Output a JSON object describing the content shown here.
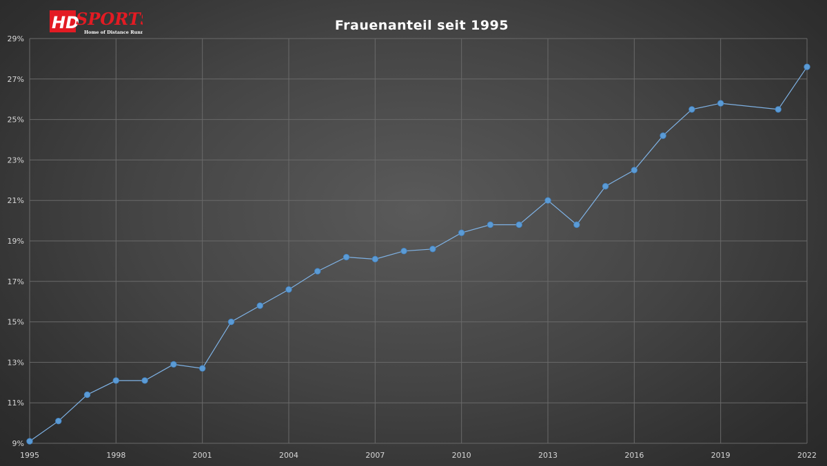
{
  "logo": {
    "mark": "HD",
    "word": "SPORTS",
    "tagline": "Home of Distance Runners"
  },
  "chart_data": {
    "type": "line",
    "title": "Frauenanteil seit 1995",
    "xlabel": "",
    "ylabel": "",
    "xlim": [
      1995,
      2022
    ],
    "ylim": [
      9,
      29
    ],
    "x_ticks": [
      1995,
      1998,
      2001,
      2004,
      2007,
      2010,
      2013,
      2016,
      2019,
      2022
    ],
    "y_ticks": [
      "9%",
      "11%",
      "13%",
      "15%",
      "17%",
      "19%",
      "21%",
      "23%",
      "25%",
      "27%",
      "29%"
    ],
    "y_tick_values": [
      9,
      11,
      13,
      15,
      17,
      19,
      21,
      23,
      25,
      27,
      29
    ],
    "grid": true,
    "legend": "none",
    "series": [
      {
        "color": "#5b9bd5",
        "x": [
          1995,
          1996,
          1997,
          1998,
          1999,
          2000,
          2001,
          2002,
          2003,
          2004,
          2005,
          2006,
          2007,
          2008,
          2009,
          2010,
          2011,
          2012,
          2013,
          2014,
          2015,
          2016,
          2017,
          2018,
          2019,
          2021,
          2022
        ],
        "values": [
          9.1,
          10.1,
          11.4,
          12.1,
          12.1,
          12.9,
          12.7,
          15.0,
          15.8,
          16.6,
          17.5,
          18.2,
          18.1,
          18.5,
          18.6,
          19.4,
          19.8,
          19.8,
          21.0,
          19.8,
          21.7,
          22.5,
          24.2,
          25.5,
          25.8,
          25.5,
          27.6
        ]
      }
    ]
  }
}
